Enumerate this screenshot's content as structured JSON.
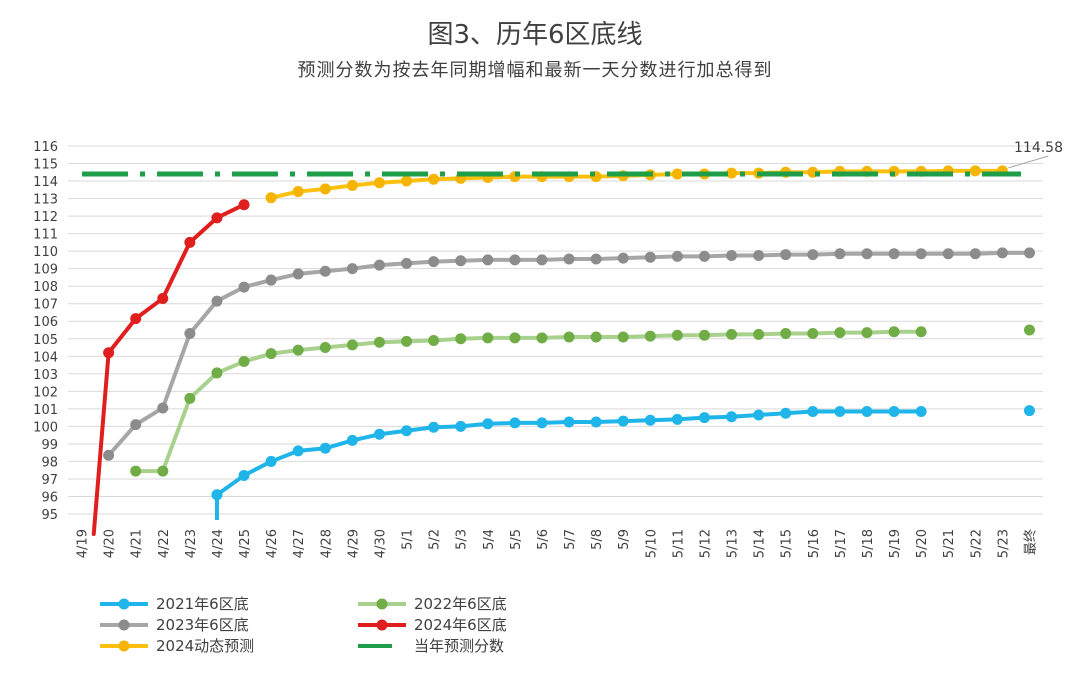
{
  "chart_data": {
    "type": "line",
    "title": "图3、历年6区底线",
    "subtitle": "预测分数为按去年同期增幅和最新一天分数进行加总得到",
    "categories": [
      "4/19",
      "4/20",
      "4/21",
      "4/22",
      "4/23",
      "4/24",
      "4/25",
      "4/26",
      "4/27",
      "4/28",
      "4/29",
      "4/30",
      "5/1",
      "5/2",
      "5/3",
      "5/4",
      "5/5",
      "5/6",
      "5/7",
      "5/8",
      "5/9",
      "5/10",
      "5/11",
      "5/12",
      "5/13",
      "5/14",
      "5/15",
      "5/16",
      "5/17",
      "5/18",
      "5/19",
      "5/20",
      "5/21",
      "5/22",
      "5/23",
      "最终"
    ],
    "ylim": [
      95,
      116
    ],
    "yticks": [
      95,
      96,
      97,
      98,
      99,
      100,
      101,
      102,
      103,
      104,
      105,
      106,
      107,
      108,
      109,
      110,
      111,
      112,
      113,
      114,
      115,
      116
    ],
    "grid": true,
    "legend_position": "bottom",
    "annotation": {
      "label": "114.58",
      "value": 114.58
    },
    "series": [
      {
        "name": "2021年6区底",
        "color": "#1fb5e8",
        "style": "solid",
        "values": [
          null,
          null,
          null,
          null,
          null,
          96.1,
          97.2,
          98.0,
          98.6,
          98.75,
          99.2,
          99.55,
          99.75,
          99.95,
          100.0,
          100.15,
          100.2,
          100.2,
          100.25,
          100.25,
          100.3,
          100.35,
          100.4,
          100.5,
          100.55,
          100.65,
          100.75,
          100.85,
          100.85,
          100.85,
          100.85,
          100.85,
          null,
          null,
          null,
          100.9
        ]
      },
      {
        "name": "2022年6区底",
        "color": "#a9d18e",
        "marker": "#70ad47",
        "style": "solid",
        "values": [
          null,
          null,
          97.45,
          97.45,
          101.6,
          103.05,
          103.7,
          104.15,
          104.35,
          104.5,
          104.65,
          104.8,
          104.85,
          104.9,
          105.0,
          105.05,
          105.05,
          105.05,
          105.1,
          105.1,
          105.1,
          105.15,
          105.2,
          105.2,
          105.25,
          105.25,
          105.3,
          105.3,
          105.35,
          105.35,
          105.4,
          105.4,
          null,
          null,
          null,
          105.5
        ]
      },
      {
        "name": "2023年6区底",
        "color": "#a6a6a6",
        "marker": "#8c8c8c",
        "style": "solid",
        "values": [
          null,
          98.35,
          100.1,
          101.05,
          105.3,
          107.15,
          107.95,
          108.35,
          108.7,
          108.85,
          109.0,
          109.2,
          109.3,
          109.4,
          109.45,
          109.5,
          109.5,
          109.5,
          109.55,
          109.55,
          109.6,
          109.65,
          109.7,
          109.7,
          109.75,
          109.75,
          109.8,
          109.8,
          109.85,
          109.85,
          109.85,
          109.85,
          109.85,
          109.85,
          109.9,
          109.9
        ]
      },
      {
        "name": "2024年6区底",
        "color": "#e01e1e",
        "style": "solid",
        "values": [
          null,
          104.2,
          106.15,
          107.3,
          110.5,
          111.9,
          112.65,
          null,
          null,
          null,
          null,
          null,
          null,
          null,
          null,
          null,
          null,
          null,
          null,
          null,
          null,
          null,
          null,
          null,
          null,
          null,
          null,
          null,
          null,
          null,
          null,
          null,
          null,
          null,
          null,
          null
        ]
      },
      {
        "name": "2024动态预测",
        "color": "#fcc10f",
        "marker": "#f5b400",
        "style": "solid",
        "values": [
          null,
          null,
          null,
          null,
          null,
          null,
          null,
          113.05,
          113.4,
          113.55,
          113.75,
          113.9,
          114.0,
          114.1,
          114.15,
          114.2,
          114.25,
          114.25,
          114.25,
          114.25,
          114.3,
          114.35,
          114.4,
          114.4,
          114.45,
          114.45,
          114.5,
          114.5,
          114.55,
          114.55,
          114.55,
          114.55,
          114.58,
          114.58,
          114.58,
          null
        ]
      },
      {
        "name": "当年预测分数",
        "color": "#1f9e4a",
        "style": "dashdot",
        "value": 114.4
      }
    ]
  }
}
